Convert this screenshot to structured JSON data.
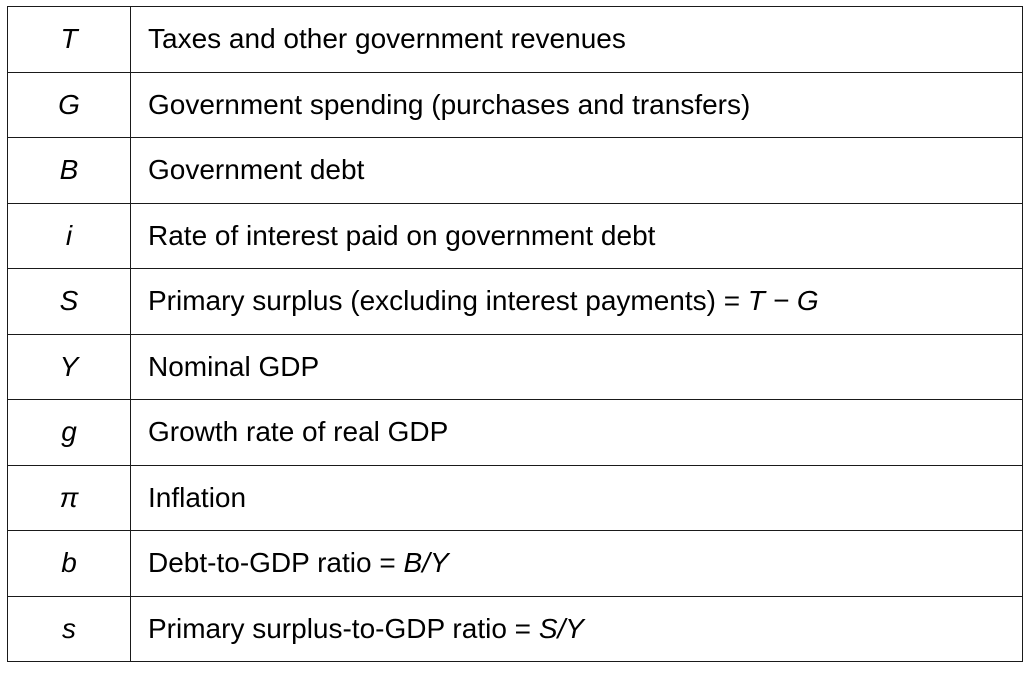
{
  "rows": [
    {
      "symbol": "T",
      "description": "Taxes and other government revenues",
      "formula_prefix": "",
      "formula": ""
    },
    {
      "symbol": "G",
      "description": "Government spending (purchases and transfers)",
      "formula_prefix": "",
      "formula": ""
    },
    {
      "symbol": "B",
      "description": "Government debt",
      "formula_prefix": "",
      "formula": ""
    },
    {
      "symbol": "i",
      "description": "Rate of interest paid on government debt",
      "formula_prefix": "",
      "formula": ""
    },
    {
      "symbol": "S",
      "description": "Primary surplus (excluding interest payments)",
      "formula_prefix": " = ",
      "formula": "T − G"
    },
    {
      "symbol": "Y",
      "description": "Nominal GDP",
      "formula_prefix": "",
      "formula": ""
    },
    {
      "symbol": "g",
      "description": "Growth rate of real GDP",
      "formula_prefix": "",
      "formula": ""
    },
    {
      "symbol": "π",
      "description": "Inflation",
      "formula_prefix": "",
      "formula": ""
    },
    {
      "symbol": "b",
      "description": "Debt-to-GDP ratio",
      "formula_prefix": " = ",
      "formula": "B/Y"
    },
    {
      "symbol": "s",
      "description": "Primary surplus-to-GDP ratio",
      "formula_prefix": " = ",
      "formula": "S/Y"
    }
  ]
}
